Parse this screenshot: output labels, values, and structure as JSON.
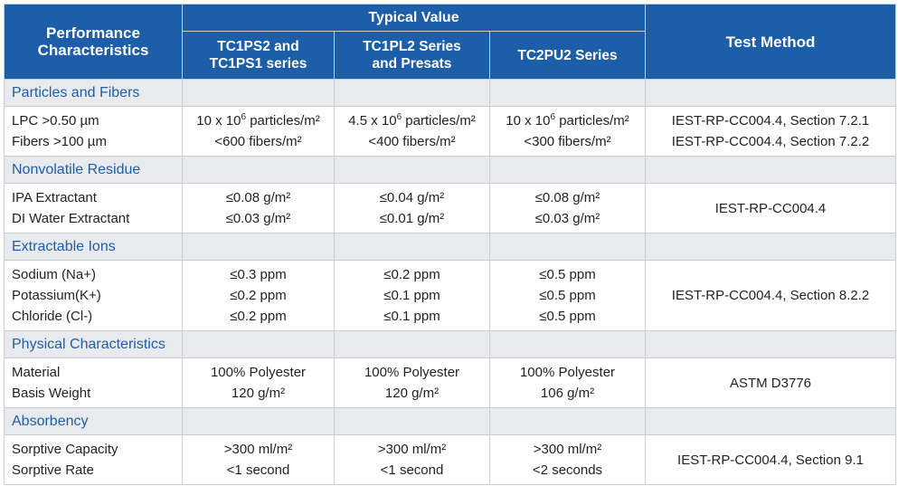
{
  "header": {
    "performance": [
      "Performance",
      "Characteristics"
    ],
    "typical_value": "Typical Value",
    "test_method": "Test Method",
    "columns": [
      [
        "TC1PS2 and",
        "TC1PS1 series"
      ],
      [
        "TC1PL2 Series",
        "and Presats"
      ],
      [
        "TC2PU2 Series"
      ]
    ]
  },
  "sections": [
    {
      "title": "Particles and Fibers",
      "rows": [
        "LPC >0.50 µm",
        "Fibers >100 µm"
      ],
      "values": [
        [
          {
            "pre": "10 x 10",
            "sup": "6",
            "post": " particles/m²"
          },
          {
            "text": "<600 fibers/m²"
          }
        ],
        [
          {
            "pre": "4.5 x 10",
            "sup": "6",
            "post": " particles/m²"
          },
          {
            "text": "<400 fibers/m²"
          }
        ],
        [
          {
            "pre": "10 x 10",
            "sup": "6",
            "post": " particles/m²"
          },
          {
            "text": "<300 fibers/m²"
          }
        ]
      ],
      "method": [
        "IEST-RP-CC004.4, Section 7.2.1",
        "IEST-RP-CC004.4, Section 7.2.2"
      ]
    },
    {
      "title": "Nonvolatile Residue",
      "rows": [
        "IPA Extractant",
        "DI Water Extractant"
      ],
      "values": [
        [
          {
            "text": "≤0.08 g/m²"
          },
          {
            "text": "≤0.03 g/m²"
          }
        ],
        [
          {
            "text": "≤0.04 g/m²"
          },
          {
            "text": "≤0.01 g/m²"
          }
        ],
        [
          {
            "text": "≤0.08 g/m²"
          },
          {
            "text": "≤0.03 g/m²"
          }
        ]
      ],
      "method": [
        "IEST-RP-CC004.4"
      ]
    },
    {
      "title": "Extractable Ions",
      "rows": [
        "Sodium (Na+)",
        "Potassium(K+)",
        "Chloride (Cl-)"
      ],
      "values": [
        [
          {
            "text": "≤0.3 ppm"
          },
          {
            "text": "≤0.2 ppm"
          },
          {
            "text": "≤0.2 ppm"
          }
        ],
        [
          {
            "text": "≤0.2 ppm"
          },
          {
            "text": "≤0.1 ppm"
          },
          {
            "text": "≤0.1 ppm"
          }
        ],
        [
          {
            "text": "≤0.5 ppm"
          },
          {
            "text": "≤0.5 ppm"
          },
          {
            "text": "≤0.5 ppm"
          }
        ]
      ],
      "method": [
        "IEST-RP-CC004.4, Section 8.2.2"
      ]
    },
    {
      "title": "Physical Characteristics",
      "rows": [
        "Material",
        "Basis Weight"
      ],
      "values": [
        [
          {
            "text": "100% Polyester"
          },
          {
            "text": "120 g/m²"
          }
        ],
        [
          {
            "text": "100% Polyester"
          },
          {
            "text": "120 g/m²"
          }
        ],
        [
          {
            "text": "100% Polyester"
          },
          {
            "text": "106 g/m²"
          }
        ]
      ],
      "method": [
        "ASTM D3776"
      ]
    },
    {
      "title": "Absorbency",
      "rows": [
        "Sorptive Capacity",
        "Sorptive Rate"
      ],
      "values": [
        [
          {
            "text": ">300 ml/m²"
          },
          {
            "text": "<1 second"
          }
        ],
        [
          {
            "text": ">300 ml/m²"
          },
          {
            "text": "<1 second"
          }
        ],
        [
          {
            "text": ">300 ml/m²"
          },
          {
            "text": "<2 seconds"
          }
        ]
      ],
      "method": [
        "IEST-RP-CC004.4, Section 9.1"
      ]
    }
  ],
  "colors": {
    "header_bg": "#1d5ea8",
    "header_text": "#ffffff",
    "section_bg": "#e8eaed",
    "section_text": "#1d5ea8",
    "grid": "#c9ccd1",
    "body_text": "#231f20"
  }
}
